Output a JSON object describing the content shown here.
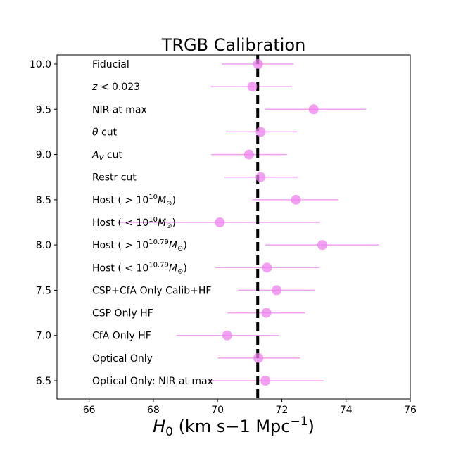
{
  "chart_data": {
    "type": "scatter",
    "title": "TRGB Calibration",
    "xlabel": "H0 (km s−1 Mpc−1)",
    "xlim": [
      65,
      76
    ],
    "ylim": [
      6.3,
      10.1
    ],
    "x_ticks": [
      66,
      68,
      70,
      72,
      74,
      76
    ],
    "y_ticks": [
      6.5,
      7.0,
      7.5,
      8.0,
      8.5,
      9.0,
      9.5,
      10.0
    ],
    "x_tick_labels": [
      "66",
      "68",
      "70",
      "72",
      "74",
      "76"
    ],
    "y_tick_labels": [
      "6.5",
      "7.0",
      "7.5",
      "8.0",
      "8.5",
      "9.0",
      "9.5",
      "10.0"
    ],
    "reference_line_x": 71.25,
    "marker_color": "#ee82ee",
    "rows": [
      {
        "label": "Fiducial",
        "y": 10.0,
        "x": 71.26,
        "err_lo": 70.13,
        "err_hi": 72.37
      },
      {
        "label": "z < 0.023",
        "y": 9.75,
        "x": 71.08,
        "err_lo": 69.79,
        "err_hi": 72.32
      },
      {
        "label": "NIR at max",
        "y": 9.5,
        "x": 72.99,
        "err_lo": 71.46,
        "err_hi": 74.63
      },
      {
        "label": "θ cut",
        "y": 9.25,
        "x": 71.34,
        "err_lo": 70.26,
        "err_hi": 72.48
      },
      {
        "label": "A_V cut",
        "y": 9.0,
        "x": 70.98,
        "err_lo": 69.8,
        "err_hi": 72.16
      },
      {
        "label": "Restr cut",
        "y": 8.75,
        "x": 71.34,
        "err_lo": 70.22,
        "err_hi": 72.5
      },
      {
        "label": "Host (>10^10 M⊙)",
        "y": 8.5,
        "x": 72.44,
        "err_lo": 71.08,
        "err_hi": 73.77
      },
      {
        "label": "Host (<10^10 M⊙)",
        "y": 8.25,
        "x": 70.07,
        "err_lo": 66.94,
        "err_hi": 73.19
      },
      {
        "label": "Host (>10^10.79 M⊙)",
        "y": 8.0,
        "x": 73.26,
        "err_lo": 71.48,
        "err_hi": 75.02
      },
      {
        "label": "Host (<10^10.79 M⊙)",
        "y": 7.75,
        "x": 71.54,
        "err_lo": 69.93,
        "err_hi": 73.17
      },
      {
        "label": "CSP+CfA Only Calib+HF",
        "y": 7.5,
        "x": 71.84,
        "err_lo": 70.64,
        "err_hi": 73.04
      },
      {
        "label": "CSP Only HF",
        "y": 7.25,
        "x": 71.52,
        "err_lo": 70.31,
        "err_hi": 72.73
      },
      {
        "label": "CfA Only HF",
        "y": 7.0,
        "x": 70.3,
        "err_lo": 68.72,
        "err_hi": 71.91
      },
      {
        "label": "Optical Only",
        "y": 6.75,
        "x": 71.27,
        "err_lo": 70.01,
        "err_hi": 72.57
      },
      {
        "label": "Optical Only: NIR at max",
        "y": 6.5,
        "x": 71.49,
        "err_lo": 69.7,
        "err_hi": 73.3
      }
    ]
  }
}
